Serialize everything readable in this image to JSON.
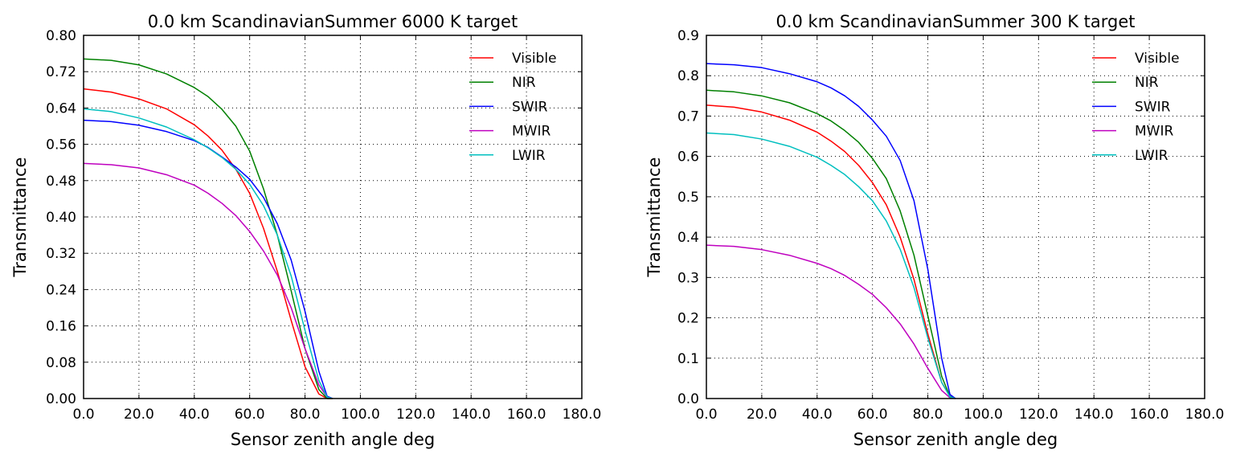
{
  "chart_data": [
    {
      "type": "line",
      "title": "0.0 km ScandinavianSummer 6000 K target",
      "xlabel": "Sensor zenith angle deg",
      "ylabel": "Transmittance",
      "xlim": [
        0,
        180
      ],
      "ylim": [
        0,
        0.8
      ],
      "xticks": [
        "0.0",
        "20.0",
        "40.0",
        "60.0",
        "80.0",
        "100.0",
        "120.0",
        "140.0",
        "160.0",
        "180.0"
      ],
      "yticks": [
        "0.00",
        "0.08",
        "0.16",
        "0.24",
        "0.32",
        "0.40",
        "0.48",
        "0.56",
        "0.64",
        "0.72",
        "0.80"
      ],
      "grid": true,
      "legend_position": "top-right",
      "x": [
        0,
        10,
        20,
        30,
        40,
        45,
        50,
        55,
        60,
        65,
        70,
        75,
        80,
        85,
        88,
        90
      ],
      "series": [
        {
          "name": "Visible",
          "color": "#ff0000",
          "values": [
            0.682,
            0.675,
            0.66,
            0.638,
            0.603,
            0.578,
            0.547,
            0.505,
            0.452,
            0.375,
            0.28,
            0.172,
            0.07,
            0.01,
            0.0,
            0.0
          ]
        },
        {
          "name": "NIR",
          "color": "#008000",
          "values": [
            0.748,
            0.745,
            0.735,
            0.715,
            0.685,
            0.665,
            0.637,
            0.6,
            0.545,
            0.462,
            0.36,
            0.237,
            0.11,
            0.02,
            0.0,
            0.0
          ]
        },
        {
          "name": "SWIR",
          "color": "#0000ff",
          "values": [
            0.613,
            0.61,
            0.602,
            0.588,
            0.568,
            0.553,
            0.532,
            0.51,
            0.483,
            0.443,
            0.385,
            0.305,
            0.192,
            0.06,
            0.005,
            0.0
          ]
        },
        {
          "name": "MWIR",
          "color": "#bf00bf",
          "values": [
            0.518,
            0.515,
            0.508,
            0.493,
            0.47,
            0.452,
            0.43,
            0.403,
            0.368,
            0.325,
            0.272,
            0.2,
            0.11,
            0.03,
            0.003,
            0.0
          ]
        },
        {
          "name": "LWIR",
          "color": "#00bfbf",
          "values": [
            0.638,
            0.632,
            0.618,
            0.598,
            0.57,
            0.552,
            0.531,
            0.505,
            0.472,
            0.425,
            0.36,
            0.27,
            0.15,
            0.04,
            0.003,
            0.0
          ]
        }
      ]
    },
    {
      "type": "line",
      "title": "0.0 km ScandinavianSummer 300 K target",
      "xlabel": "Sensor zenith angle deg",
      "ylabel": "Transmittance",
      "xlim": [
        0,
        180
      ],
      "ylim": [
        0,
        0.9
      ],
      "xticks": [
        "0.0",
        "20.0",
        "40.0",
        "60.0",
        "80.0",
        "100.0",
        "120.0",
        "140.0",
        "160.0",
        "180.0"
      ],
      "yticks": [
        "0.0",
        "0.1",
        "0.2",
        "0.3",
        "0.4",
        "0.5",
        "0.6",
        "0.7",
        "0.8",
        "0.9"
      ],
      "grid": true,
      "legend_position": "top-right",
      "x": [
        0,
        10,
        20,
        30,
        40,
        45,
        50,
        55,
        60,
        65,
        70,
        75,
        80,
        85,
        88,
        90
      ],
      "series": [
        {
          "name": "Visible",
          "color": "#ff0000",
          "values": [
            0.727,
            0.722,
            0.71,
            0.69,
            0.66,
            0.638,
            0.612,
            0.578,
            0.535,
            0.48,
            0.4,
            0.295,
            0.16,
            0.04,
            0.005,
            0.0
          ]
        },
        {
          "name": "NIR",
          "color": "#008000",
          "values": [
            0.764,
            0.76,
            0.75,
            0.733,
            0.706,
            0.688,
            0.664,
            0.635,
            0.595,
            0.545,
            0.465,
            0.355,
            0.205,
            0.055,
            0.005,
            0.0
          ]
        },
        {
          "name": "SWIR",
          "color": "#0000ff",
          "values": [
            0.83,
            0.827,
            0.82,
            0.805,
            0.785,
            0.77,
            0.75,
            0.724,
            0.69,
            0.65,
            0.59,
            0.49,
            0.32,
            0.1,
            0.01,
            0.0
          ]
        },
        {
          "name": "MWIR",
          "color": "#bf00bf",
          "values": [
            0.38,
            0.377,
            0.369,
            0.355,
            0.335,
            0.322,
            0.305,
            0.283,
            0.258,
            0.225,
            0.185,
            0.135,
            0.075,
            0.02,
            0.002,
            0.0
          ]
        },
        {
          "name": "LWIR",
          "color": "#00bfbf",
          "values": [
            0.658,
            0.654,
            0.643,
            0.625,
            0.598,
            0.578,
            0.555,
            0.525,
            0.49,
            0.44,
            0.37,
            0.275,
            0.15,
            0.04,
            0.004,
            0.0
          ]
        }
      ]
    }
  ]
}
